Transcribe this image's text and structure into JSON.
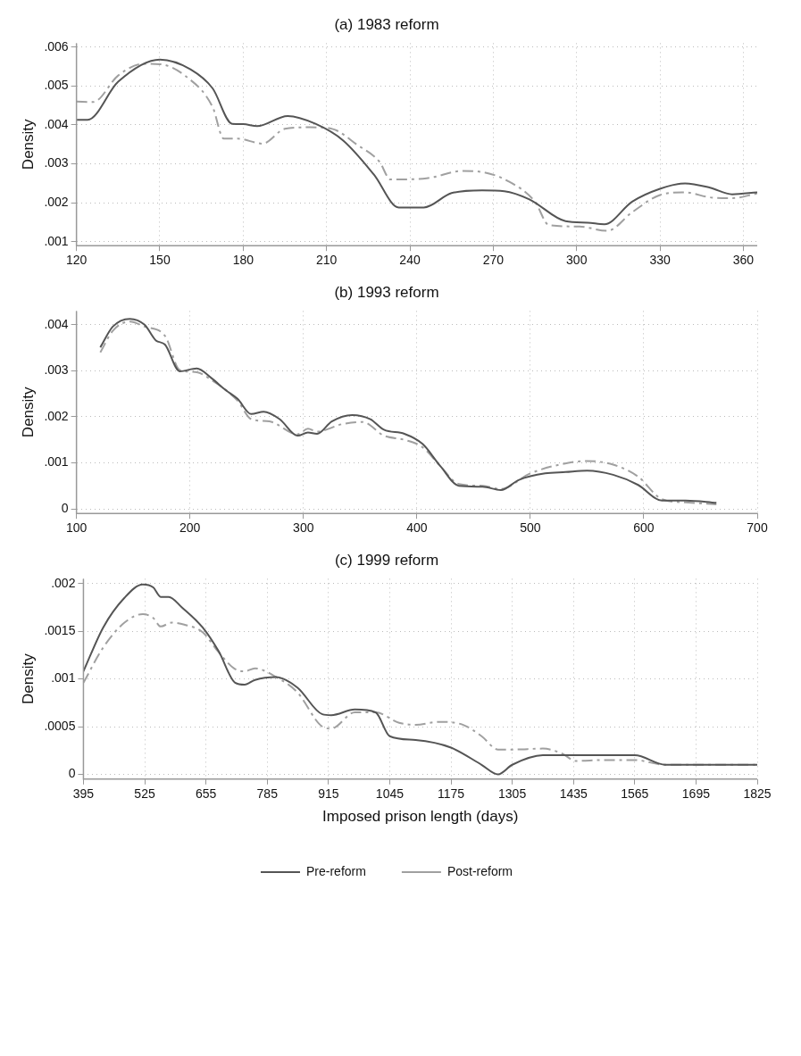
{
  "chart_data": [
    {
      "type": "line",
      "title": "(a) 1983 reform",
      "ylabel": "Density",
      "xlim": [
        120,
        365
      ],
      "xticks": [
        120,
        150,
        180,
        210,
        240,
        270,
        300,
        330,
        360
      ],
      "ylim": [
        0.0009,
        0.0061
      ],
      "yticks": [
        {
          "value": 0.001,
          "label": ".001"
        },
        {
          "value": 0.002,
          "label": ".002"
        },
        {
          "value": 0.003,
          "label": ".003"
        },
        {
          "value": 0.004,
          "label": ".004"
        },
        {
          "value": 0.005,
          "label": ".005"
        },
        {
          "value": 0.006,
          "label": ".006"
        }
      ],
      "grid": true,
      "legend": false,
      "series": [
        {
          "color": "#555555",
          "line_style": "solid",
          "x": [
            120,
            124,
            135,
            150,
            161,
            169,
            176,
            180,
            185,
            196,
            206,
            216,
            227,
            236,
            245,
            255,
            266,
            274,
            283,
            296,
            304,
            310,
            320,
            330,
            339,
            348,
            356,
            365
          ],
          "values": [
            0.00413,
            0.00413,
            0.00511,
            0.00568,
            0.00543,
            0.00494,
            0.00403,
            0.00402,
            0.00397,
            0.00423,
            0.00403,
            0.0036,
            0.00273,
            0.00188,
            0.00188,
            0.00225,
            0.00232,
            0.0023,
            0.00209,
            0.00153,
            0.00149,
            0.00145,
            0.00203,
            0.00236,
            0.0025,
            0.00239,
            0.00222,
            0.00227
          ]
        },
        {
          "color": "#a0a0a0",
          "line_style": "dashed",
          "x": [
            120,
            126,
            135,
            144,
            150,
            159,
            169,
            173,
            178,
            187,
            195,
            204,
            212,
            221,
            229,
            233,
            246,
            259,
            266,
            275,
            285,
            290,
            301,
            311,
            320,
            330,
            339,
            348,
            356,
            365
          ],
          "values": [
            0.0046,
            0.00459,
            0.00527,
            0.00557,
            0.00556,
            0.00527,
            0.00446,
            0.00365,
            0.00365,
            0.00352,
            0.0039,
            0.00394,
            0.0039,
            0.00349,
            0.00306,
            0.0026,
            0.00263,
            0.00282,
            0.00279,
            0.00257,
            0.00203,
            0.00143,
            0.00139,
            0.00128,
            0.00176,
            0.0022,
            0.00227,
            0.00214,
            0.00212,
            0.00224
          ]
        }
      ]
    },
    {
      "type": "line",
      "title": "(b) 1993 reform",
      "ylabel": "Density",
      "xlim": [
        100,
        700
      ],
      "xticks": [
        100,
        200,
        300,
        400,
        500,
        600,
        700
      ],
      "ylim": [
        -0.0001,
        0.0043
      ],
      "yticks": [
        0,
        {
          "value": 0.001,
          "label": ".001"
        },
        {
          "value": 0.002,
          "label": ".002"
        },
        {
          "value": 0.003,
          "label": ".003"
        },
        {
          "value": 0.004,
          "label": ".004"
        }
      ],
      "grid": true,
      "legend": false,
      "series": [
        {
          "color": "#555555",
          "line_style": "solid",
          "x": [
            121,
            132,
            147,
            160,
            170,
            178,
            191,
            206,
            219,
            231,
            242,
            254,
            265,
            279,
            295,
            304,
            312,
            325,
            343,
            359,
            371,
            389,
            405,
            421,
            437,
            458,
            474,
            490,
            513,
            531,
            550,
            573,
            595,
            616,
            637,
            664
          ],
          "values": [
            0.00351,
            0.00396,
            0.00413,
            0.004,
            0.00366,
            0.00357,
            0.00299,
            0.00305,
            0.00284,
            0.00259,
            0.00239,
            0.00206,
            0.00211,
            0.00195,
            0.00159,
            0.00166,
            0.00163,
            0.0019,
            0.00204,
            0.00195,
            0.00172,
            0.00163,
            0.00141,
            0.00092,
            0.0005,
            0.00048,
            0.00041,
            0.00063,
            0.00077,
            0.0008,
            0.00083,
            0.00074,
            0.00052,
            0.00018,
            0.00018,
            0.00013
          ]
        },
        {
          "color": "#a0a0a0",
          "line_style": "dashed",
          "x": [
            121,
            132,
            147,
            160,
            178,
            191,
            206,
            219,
            242,
            254,
            270,
            295,
            304,
            312,
            334,
            352,
            371,
            389,
            405,
            421,
            437,
            458,
            474,
            499,
            522,
            550,
            573,
            595,
            616,
            637,
            664
          ],
          "values": [
            0.0034,
            0.00387,
            0.00407,
            0.00396,
            0.00376,
            0.00302,
            0.00297,
            0.0028,
            0.00235,
            0.00195,
            0.0019,
            0.00162,
            0.00174,
            0.00168,
            0.00184,
            0.00189,
            0.00159,
            0.0015,
            0.00134,
            0.00092,
            0.00054,
            0.0005,
            0.00043,
            0.00076,
            0.00094,
            0.00104,
            0.00096,
            0.0007,
            0.00021,
            0.00014,
            0.0001
          ]
        }
      ]
    },
    {
      "type": "line",
      "title": "(c) 1999 reform",
      "ylabel": "Density",
      "xlabel": "Imposed prison length (days)",
      "xlim": [
        395,
        1825
      ],
      "xticks": [
        395,
        525,
        655,
        785,
        915,
        1045,
        1175,
        1305,
        1435,
        1565,
        1695,
        1825
      ],
      "ylim": [
        -5e-05,
        0.00205
      ],
      "yticks": [
        0,
        {
          "value": 0.0005,
          "label": ".0005"
        },
        {
          "value": 0.001,
          "label": ".001"
        },
        {
          "value": 0.0015,
          "label": ".0015"
        },
        {
          "value": 0.002,
          "label": ".002"
        }
      ],
      "grid": true,
      "legend": "bottom",
      "series": [
        {
          "name": "Pre-reform",
          "color": "#555555",
          "line_style": "solid",
          "x": [
            395,
            437,
            482,
            521,
            543,
            559,
            576,
            604,
            648,
            682,
            717,
            737,
            759,
            804,
            849,
            902,
            921,
            971,
            1015,
            1045,
            1100,
            1175,
            1240,
            1275,
            1305,
            1370,
            1435,
            1500,
            1565,
            1630,
            1695,
            1760,
            1825
          ],
          "values": [
            0.00108,
            0.00154,
            0.00185,
            0.00199,
            0.00196,
            0.00186,
            0.00186,
            0.00175,
            0.00154,
            0.00129,
            0.00096,
            0.00094,
            0.00099,
            0.00102,
            0.00091,
            0.00063,
            0.00062,
            0.00068,
            0.00065,
            0.0004,
            0.00036,
            0.00028,
            0.0001,
            0,
            0.0001,
            0.0002,
            0.0002,
            0.0002,
            0.0002,
            0.0001,
            0.0001,
            0.0001,
            0.0001
          ]
        },
        {
          "name": "Post-reform",
          "color": "#a0a0a0",
          "line_style": "dashed",
          "x": [
            395,
            437,
            482,
            521,
            543,
            559,
            582,
            609,
            648,
            682,
            715,
            737,
            759,
            804,
            849,
            902,
            921,
            971,
            1015,
            1065,
            1100,
            1150,
            1200,
            1240,
            1275,
            1305,
            1370,
            1410,
            1440,
            1500,
            1565,
            1630,
            1695,
            1760,
            1825
          ],
          "values": [
            0.00096,
            0.00133,
            0.00159,
            0.00168,
            0.00164,
            0.00155,
            0.00159,
            0.00157,
            0.00149,
            0.00128,
            0.00111,
            0.00108,
            0.00111,
            0.00102,
            0.00086,
            0.0005,
            0.00048,
            0.00065,
            0.00065,
            0.00054,
            0.00052,
            0.00055,
            0.00052,
            0.0004,
            0.00026,
            0.00026,
            0.00027,
            0.00022,
            0.00014,
            0.00015,
            0.00015,
            0.0001,
            0.0001,
            0.0001,
            0.0001
          ]
        }
      ]
    }
  ]
}
